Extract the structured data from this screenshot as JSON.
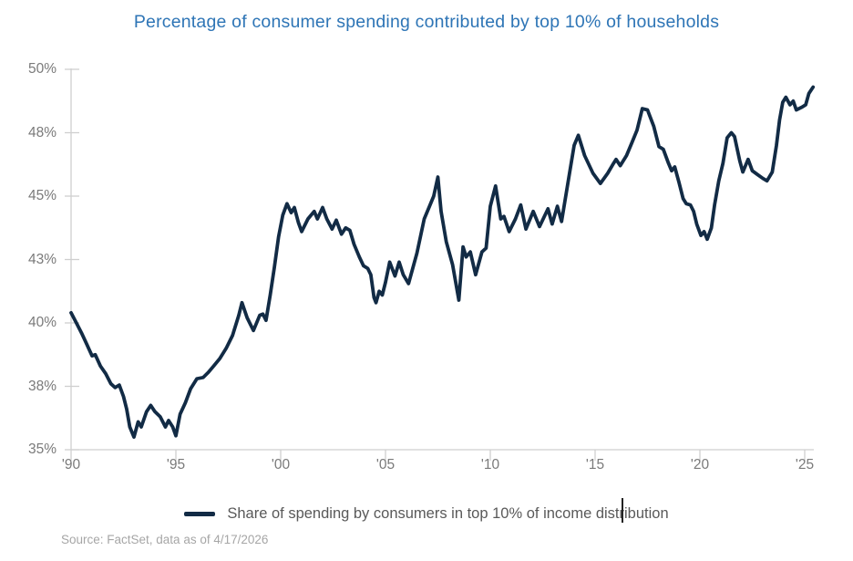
{
  "title": "Percentage of consumer spending contributed by top 10% of households",
  "source": {
    "text": "Source: FactSet, data as of 4/17/2026"
  },
  "colors": {
    "title": "#2E75B6",
    "line": "#122B45",
    "axis": "#CFCFCF",
    "tick_label": "#7A7A7A",
    "legend_text": "#595959",
    "source_text": "#A6A6A6",
    "background": "#FFFFFF"
  },
  "chart_data": {
    "type": "line",
    "title": "Percentage of consumer spending contributed by top 10% of households",
    "grid": false,
    "legend_position": "bottom",
    "x_axis": {
      "label": "",
      "range": [
        1990,
        2025.45
      ],
      "ticks": [
        {
          "label": "'90",
          "year": 1990
        },
        {
          "label": "'95",
          "year": 1995
        },
        {
          "label": "'00",
          "year": 2000
        },
        {
          "label": "'05",
          "year": 2005
        },
        {
          "label": "'10",
          "year": 2010
        },
        {
          "label": "'15",
          "year": 2015
        },
        {
          "label": "'20",
          "year": 2020
        },
        {
          "label": "'25",
          "year": 2025
        }
      ]
    },
    "y_axis": {
      "label": "",
      "unit": "%",
      "range": [
        35,
        50
      ],
      "tick_interval": 2.5,
      "ticks": [
        {
          "label": "50%",
          "value": 50
        },
        {
          "label": "48%",
          "value": 47.5
        },
        {
          "label": "45%",
          "value": 45
        },
        {
          "label": "43%",
          "value": 42.5
        },
        {
          "label": "40%",
          "value": 40
        },
        {
          "label": "38%",
          "value": 37.5
        },
        {
          "label": "35%",
          "value": 35
        }
      ]
    },
    "series": [
      {
        "name": "Share of spending by consumers in top 10% of income distribution",
        "color": "#122B45",
        "points": [
          [
            1990.0,
            40.4
          ],
          [
            1990.25,
            40.0
          ],
          [
            1990.5,
            39.6
          ],
          [
            1990.75,
            39.15
          ],
          [
            1991.0,
            38.7
          ],
          [
            1991.15,
            38.75
          ],
          [
            1991.4,
            38.3
          ],
          [
            1991.65,
            38.0
          ],
          [
            1991.9,
            37.6
          ],
          [
            1992.1,
            37.45
          ],
          [
            1992.3,
            37.55
          ],
          [
            1992.5,
            37.1
          ],
          [
            1992.65,
            36.6
          ],
          [
            1992.8,
            35.9
          ],
          [
            1993.0,
            35.5
          ],
          [
            1993.2,
            36.1
          ],
          [
            1993.35,
            35.9
          ],
          [
            1993.6,
            36.5
          ],
          [
            1993.8,
            36.75
          ],
          [
            1994.0,
            36.5
          ],
          [
            1994.25,
            36.3
          ],
          [
            1994.5,
            35.9
          ],
          [
            1994.65,
            36.15
          ],
          [
            1994.85,
            35.9
          ],
          [
            1995.0,
            35.55
          ],
          [
            1995.2,
            36.4
          ],
          [
            1995.45,
            36.85
          ],
          [
            1995.7,
            37.4
          ],
          [
            1996.0,
            37.8
          ],
          [
            1996.3,
            37.85
          ],
          [
            1996.55,
            38.05
          ],
          [
            1996.8,
            38.3
          ],
          [
            1997.1,
            38.6
          ],
          [
            1997.4,
            39.0
          ],
          [
            1997.7,
            39.5
          ],
          [
            1998.0,
            40.3
          ],
          [
            1998.15,
            40.8
          ],
          [
            1998.4,
            40.2
          ],
          [
            1998.7,
            39.7
          ],
          [
            1999.0,
            40.3
          ],
          [
            1999.15,
            40.35
          ],
          [
            1999.3,
            40.1
          ],
          [
            1999.5,
            41.1
          ],
          [
            1999.7,
            42.2
          ],
          [
            1999.9,
            43.4
          ],
          [
            2000.1,
            44.25
          ],
          [
            2000.3,
            44.7
          ],
          [
            2000.5,
            44.35
          ],
          [
            2000.65,
            44.55
          ],
          [
            2000.85,
            43.95
          ],
          [
            2001.0,
            43.6
          ],
          [
            2001.3,
            44.1
          ],
          [
            2001.6,
            44.4
          ],
          [
            2001.75,
            44.1
          ],
          [
            2002.0,
            44.55
          ],
          [
            2002.2,
            44.1
          ],
          [
            2002.45,
            43.7
          ],
          [
            2002.65,
            44.05
          ],
          [
            2002.9,
            43.5
          ],
          [
            2003.1,
            43.75
          ],
          [
            2003.3,
            43.65
          ],
          [
            2003.5,
            43.1
          ],
          [
            2003.75,
            42.6
          ],
          [
            2003.95,
            42.25
          ],
          [
            2004.15,
            42.15
          ],
          [
            2004.3,
            41.9
          ],
          [
            2004.45,
            41.0
          ],
          [
            2004.55,
            40.8
          ],
          [
            2004.7,
            41.25
          ],
          [
            2004.85,
            41.1
          ],
          [
            2005.0,
            41.6
          ],
          [
            2005.2,
            42.4
          ],
          [
            2005.45,
            41.85
          ],
          [
            2005.65,
            42.4
          ],
          [
            2005.85,
            41.9
          ],
          [
            2006.1,
            41.55
          ],
          [
            2006.5,
            42.75
          ],
          [
            2006.85,
            44.1
          ],
          [
            2007.1,
            44.6
          ],
          [
            2007.3,
            45.0
          ],
          [
            2007.5,
            45.75
          ],
          [
            2007.65,
            44.4
          ],
          [
            2007.9,
            43.2
          ],
          [
            2008.2,
            42.3
          ],
          [
            2008.5,
            40.9
          ],
          [
            2008.7,
            43.0
          ],
          [
            2008.85,
            42.6
          ],
          [
            2009.05,
            42.8
          ],
          [
            2009.3,
            41.9
          ],
          [
            2009.6,
            42.8
          ],
          [
            2009.8,
            42.95
          ],
          [
            2010.0,
            44.6
          ],
          [
            2010.25,
            45.4
          ],
          [
            2010.5,
            44.1
          ],
          [
            2010.65,
            44.2
          ],
          [
            2010.9,
            43.6
          ],
          [
            2011.2,
            44.1
          ],
          [
            2011.45,
            44.65
          ],
          [
            2011.7,
            43.7
          ],
          [
            2012.05,
            44.4
          ],
          [
            2012.35,
            43.8
          ],
          [
            2012.75,
            44.5
          ],
          [
            2012.95,
            43.9
          ],
          [
            2013.2,
            44.6
          ],
          [
            2013.4,
            44.0
          ],
          [
            2013.7,
            45.5
          ],
          [
            2014.0,
            47.0
          ],
          [
            2014.2,
            47.4
          ],
          [
            2014.5,
            46.6
          ],
          [
            2014.9,
            45.9
          ],
          [
            2015.25,
            45.5
          ],
          [
            2015.6,
            45.9
          ],
          [
            2015.85,
            46.25
          ],
          [
            2016.0,
            46.45
          ],
          [
            2016.2,
            46.2
          ],
          [
            2016.5,
            46.6
          ],
          [
            2016.75,
            47.1
          ],
          [
            2017.0,
            47.6
          ],
          [
            2017.25,
            48.45
          ],
          [
            2017.5,
            48.4
          ],
          [
            2017.8,
            47.75
          ],
          [
            2018.05,
            46.95
          ],
          [
            2018.25,
            46.85
          ],
          [
            2018.5,
            46.3
          ],
          [
            2018.65,
            46.0
          ],
          [
            2018.8,
            46.15
          ],
          [
            2019.0,
            45.55
          ],
          [
            2019.2,
            44.9
          ],
          [
            2019.35,
            44.7
          ],
          [
            2019.55,
            44.65
          ],
          [
            2019.7,
            44.4
          ],
          [
            2019.85,
            43.9
          ],
          [
            2020.05,
            43.45
          ],
          [
            2020.2,
            43.6
          ],
          [
            2020.35,
            43.3
          ],
          [
            2020.55,
            43.75
          ],
          [
            2020.7,
            44.65
          ],
          [
            2020.9,
            45.6
          ],
          [
            2021.1,
            46.3
          ],
          [
            2021.3,
            47.3
          ],
          [
            2021.5,
            47.5
          ],
          [
            2021.65,
            47.35
          ],
          [
            2021.9,
            46.4
          ],
          [
            2022.05,
            45.95
          ],
          [
            2022.3,
            46.45
          ],
          [
            2022.5,
            46.0
          ],
          [
            2022.75,
            45.85
          ],
          [
            2023.0,
            45.7
          ],
          [
            2023.2,
            45.6
          ],
          [
            2023.45,
            45.95
          ],
          [
            2023.65,
            47.0
          ],
          [
            2023.8,
            48.0
          ],
          [
            2023.95,
            48.7
          ],
          [
            2024.1,
            48.9
          ],
          [
            2024.3,
            48.6
          ],
          [
            2024.45,
            48.75
          ],
          [
            2024.6,
            48.4
          ],
          [
            2024.85,
            48.5
          ],
          [
            2025.05,
            48.6
          ],
          [
            2025.2,
            49.05
          ],
          [
            2025.4,
            49.3
          ]
        ]
      }
    ]
  }
}
